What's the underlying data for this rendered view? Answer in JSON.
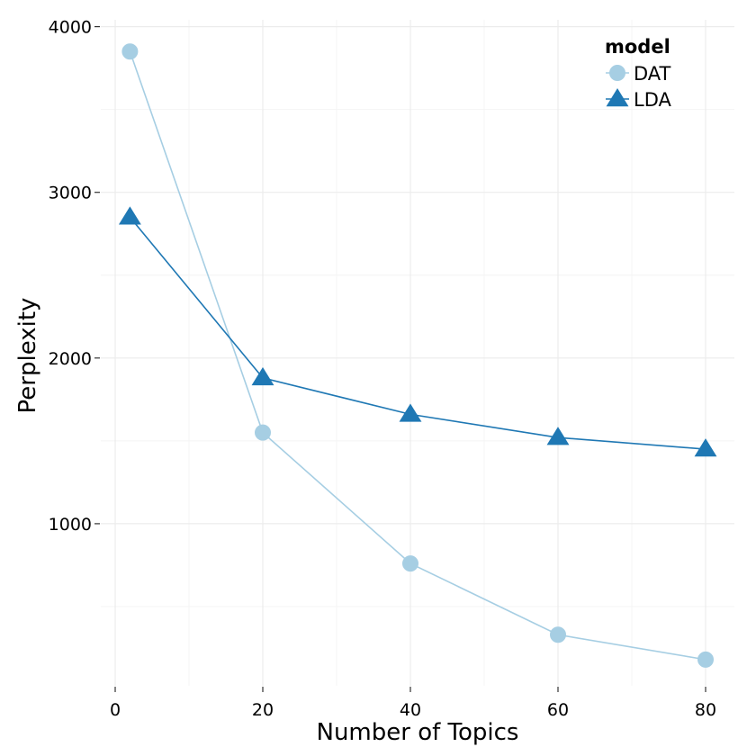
{
  "chart_data": {
    "type": "line",
    "xlabel": "Number of Topics",
    "ylabel": "Perplexity",
    "x": [
      2,
      20,
      40,
      60,
      80
    ],
    "xlim": [
      0,
      84
    ],
    "ylim": [
      0,
      4000
    ],
    "xticks": [
      0,
      20,
      40,
      60,
      80
    ],
    "yticks": [
      1000,
      2000,
      3000,
      4000
    ],
    "x_tick_labels": [
      "0",
      "20",
      "40",
      "60",
      "80"
    ],
    "y_tick_labels": [
      "1000",
      "2000",
      "3000",
      "4000"
    ],
    "grid": true,
    "legend": {
      "title": "model",
      "placement": "top-right"
    },
    "series": [
      {
        "name": "DAT",
        "marker": "circle",
        "color": "#a6cee3",
        "values": [
          3850,
          1550,
          760,
          330,
          180
        ]
      },
      {
        "name": "LDA",
        "marker": "triangle",
        "color": "#1f78b4",
        "values": [
          2850,
          1880,
          1660,
          1520,
          1450
        ]
      }
    ]
  }
}
